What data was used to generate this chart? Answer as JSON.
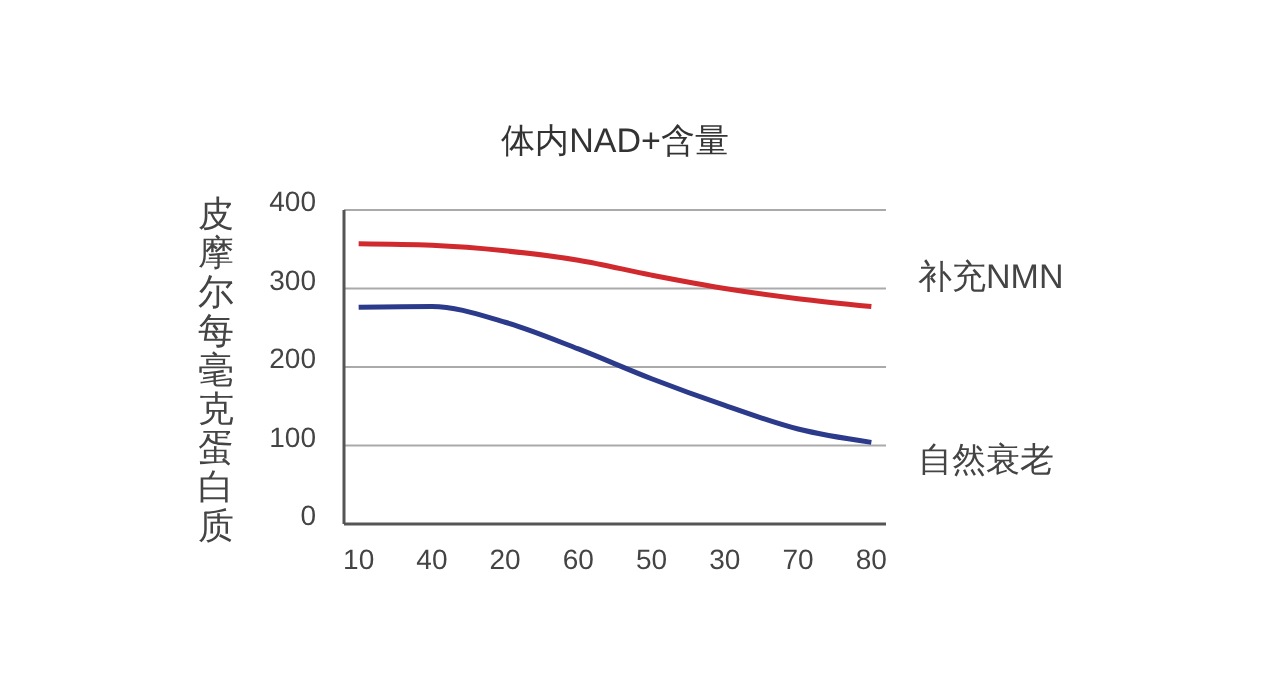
{
  "chart_data": {
    "type": "line",
    "title": "体内NAD+含量",
    "ylabel": "皮摩尔每毫克蛋白质",
    "categories": [
      "10",
      "40",
      "20",
      "60",
      "50",
      "30",
      "70",
      "80"
    ],
    "ylim": [
      0,
      400
    ],
    "yticks": [
      0,
      100,
      200,
      300,
      400
    ],
    "grid": "y",
    "legend": false,
    "series": [
      {
        "name": "补充NMN",
        "color": "#d02a2e",
        "values": [
          357,
          355,
          348,
          336,
          317,
          300,
          287,
          277
        ]
      },
      {
        "name": "自然衰老",
        "color": "#2b3a8a",
        "values": [
          276,
          277,
          257,
          223,
          185,
          151,
          121,
          104
        ]
      }
    ]
  }
}
